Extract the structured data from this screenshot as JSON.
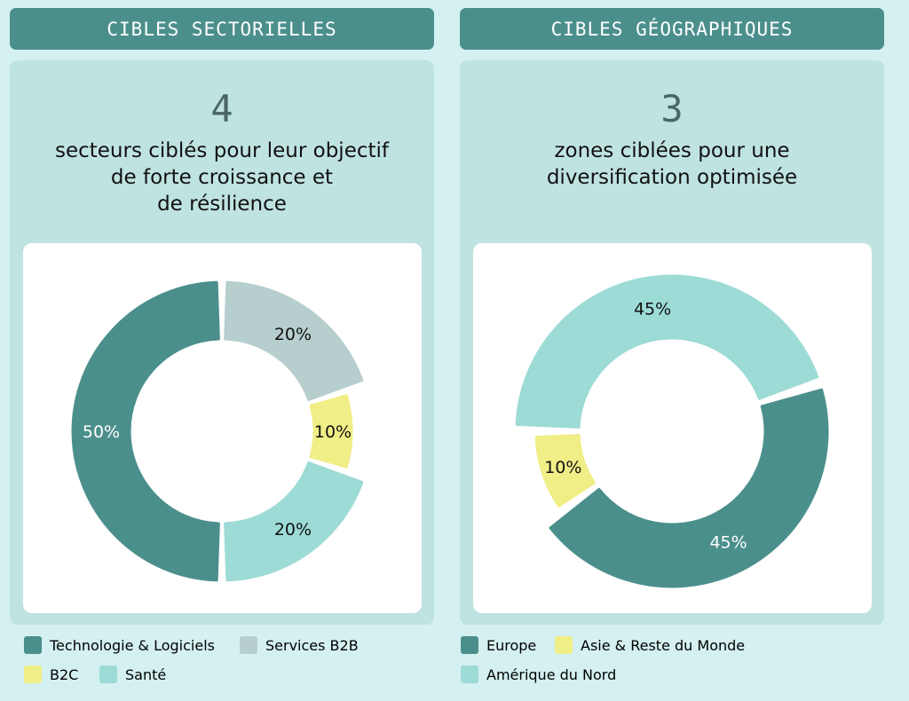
{
  "left": {
    "header": "CIBLES SECTORIELLES",
    "count": "4",
    "desc_lines": [
      "secteurs ciblés pour leur objectif",
      "de forte croissance et",
      "de résilience"
    ]
  },
  "right": {
    "header": "CIBLES GÉOGRAPHIQUES",
    "count": "3",
    "desc_lines": [
      "zones ciblées pour une",
      "diversification optimisée"
    ]
  },
  "chart_data": [
    {
      "type": "pie",
      "donut": true,
      "labels": [
        "Technologie & Logiciels",
        "Services B2B",
        "B2C",
        "Santé"
      ],
      "values": [
        50,
        20,
        10,
        20
      ],
      "value_labels": [
        "50%",
        "20%",
        "10%",
        "20%"
      ],
      "colors": [
        "#4b8f8c",
        "#b6cecd",
        "#f0ee86",
        "#9ddbd6"
      ],
      "legend_placement": "bottom-left"
    },
    {
      "type": "pie",
      "donut": true,
      "labels": [
        "Europe",
        "Asie & Reste du Monde",
        "Amérique du Nord"
      ],
      "values": [
        45,
        10,
        45
      ],
      "value_labels": [
        "45%",
        "10%",
        "45%"
      ],
      "colors": [
        "#4b8f8c",
        "#f0ee86",
        "#9ddbd6"
      ],
      "legend_placement": "bottom-left"
    }
  ],
  "legends": {
    "left": [
      "Technologie & Logiciels",
      "Services B2B",
      "B2C",
      "Santé"
    ],
    "right": [
      "Europe",
      "Asie & Reste du Monde",
      "Amérique du Nord"
    ]
  }
}
